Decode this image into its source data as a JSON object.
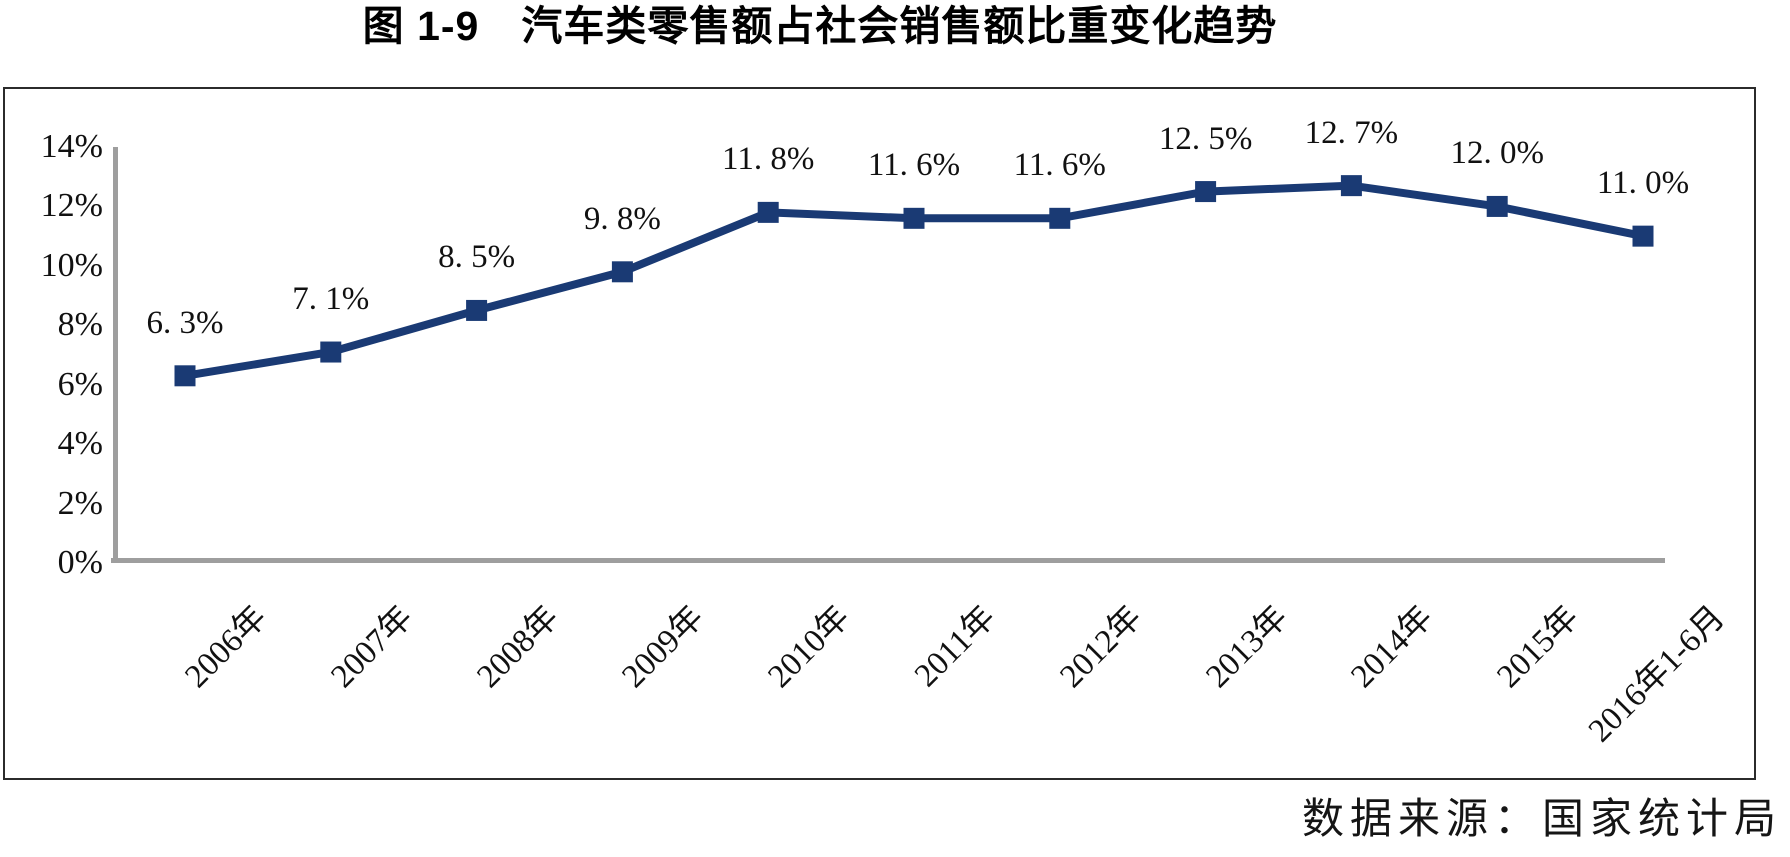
{
  "title": "图 1-9　汽车类零售额占社会销售额比重变化趋势",
  "source_note": "数据来源：国家统计局",
  "colors": {
    "line": "#1a3a74",
    "marker": "#1a3a74",
    "axis": "#9e9e9e",
    "frame_border": "#2b2b2b",
    "text": "#111111"
  },
  "chart_data": {
    "type": "line",
    "title": "图 1-9　汽车类零售额占社会销售额比重变化趋势",
    "categories": [
      "2006年",
      "2007年",
      "2008年",
      "2009年",
      "2010年",
      "2011年",
      "2012年",
      "2013年",
      "2014年",
      "2015年",
      "2016年1-6月"
    ],
    "series": [
      {
        "name": "汽车类零售额占社会销售额比重",
        "values": [
          6.3,
          7.1,
          8.5,
          9.8,
          11.8,
          11.6,
          11.6,
          12.5,
          12.7,
          12.0,
          11.0
        ]
      }
    ],
    "point_labels": [
      "6. 3%",
      "7. 1%",
      "8. 5%",
      "9. 8%",
      "11. 8%",
      "11. 6%",
      "11. 6%",
      "12. 5%",
      "12. 7%",
      "12. 0%",
      "11. 0%"
    ],
    "y_ticks": [
      "0%",
      "2%",
      "4%",
      "6%",
      "8%",
      "10%",
      "12%",
      "14%"
    ],
    "y_tick_values": [
      0,
      2,
      4,
      6,
      8,
      10,
      12,
      14
    ],
    "ylim": [
      0,
      14
    ],
    "xlabel": "",
    "ylabel": "",
    "grid": false,
    "legend": false,
    "marker_shape": "square",
    "x_label_rotation_deg": -45
  }
}
